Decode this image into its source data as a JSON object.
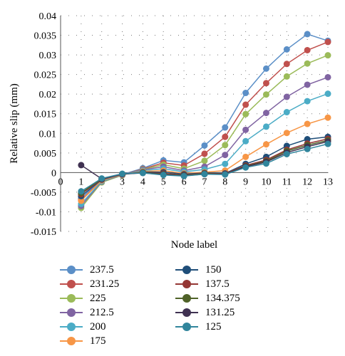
{
  "chart_data": {
    "type": "line",
    "title": "",
    "xlabel": "Node label",
    "ylabel": "Relative slip (mm)",
    "xlim": [
      0,
      13
    ],
    "ylim": [
      -0.015,
      0.04
    ],
    "x_ticks": [
      "0",
      "1",
      "2",
      "3",
      "4",
      "5",
      "6",
      "7",
      "8",
      "9",
      "10",
      "11",
      "12",
      "13"
    ],
    "y_ticks": [
      "0.04",
      "0.035",
      "0.03",
      "0.025",
      "0.02",
      "0.015",
      "0.01",
      "0.005",
      "0",
      "-0.005",
      "-0.01",
      "-0.015"
    ],
    "y_tick_values": [
      0.04,
      0.035,
      0.03,
      0.025,
      0.02,
      0.015,
      0.01,
      0.005,
      0,
      -0.005,
      -0.01,
      -0.015
    ],
    "grid": "dotted",
    "legend_position": "bottom",
    "x": [
      1,
      2,
      3,
      4,
      5,
      6,
      7,
      8,
      9,
      10,
      11,
      12,
      13
    ],
    "series": [
      {
        "name": "237.5",
        "color": "#5b8fc7",
        "values": [
          -0.0065,
          -0.0018,
          -0.0005,
          0.0011,
          0.0031,
          0.0026,
          0.0069,
          0.0115,
          0.0203,
          0.0265,
          0.0314,
          0.0353,
          0.0336
        ]
      },
      {
        "name": "231.25",
        "color": "#c0504d",
        "values": [
          -0.007,
          -0.002,
          -0.0006,
          0.0009,
          0.0025,
          0.0018,
          0.0048,
          0.0091,
          0.0173,
          0.0228,
          0.0277,
          0.0312,
          0.0333
        ]
      },
      {
        "name": "225",
        "color": "#9bbb59",
        "values": [
          -0.009,
          -0.0025,
          -0.0007,
          0.0008,
          0.002,
          0.001,
          0.003,
          0.007,
          0.0149,
          0.0199,
          0.0245,
          0.0278,
          0.0299
        ]
      },
      {
        "name": "212.5",
        "color": "#8064a2",
        "values": [
          -0.0085,
          -0.0023,
          -0.0006,
          0.0007,
          0.0015,
          0.0005,
          0.0015,
          0.0045,
          0.0109,
          0.0152,
          0.0193,
          0.0224,
          0.0243
        ]
      },
      {
        "name": "200",
        "color": "#4bacc6",
        "values": [
          -0.008,
          -0.0022,
          -0.0005,
          0.0005,
          0.001,
          0.0002,
          0.0008,
          0.0022,
          0.008,
          0.0117,
          0.0154,
          0.0182,
          0.0201
        ]
      },
      {
        "name": "175",
        "color": "#f79646",
        "values": [
          -0.0072,
          -0.002,
          -0.0005,
          0.0003,
          0.0005,
          -0.0002,
          0.0001,
          0.0005,
          0.004,
          0.0072,
          0.0101,
          0.0124,
          0.014
        ]
      },
      {
        "name": "150",
        "color": "#1f4e79",
        "values": [
          -0.006,
          -0.0018,
          -0.0004,
          0.0001,
          0.0001,
          -0.0004,
          -0.0001,
          -0.0002,
          0.0022,
          0.004,
          0.0068,
          0.0085,
          0.0091
        ]
      },
      {
        "name": "137.5",
        "color": "#943634",
        "values": [
          -0.0055,
          -0.0017,
          -0.0004,
          0.0,
          -0.0002,
          -0.0006,
          -0.0002,
          -0.0003,
          0.0018,
          0.0032,
          0.0058,
          0.0074,
          0.0086
        ]
      },
      {
        "name": "134.375",
        "color": "#4f6228",
        "values": [
          -0.0052,
          -0.0016,
          -0.0004,
          0.0,
          -0.0004,
          -0.0007,
          -0.0003,
          -0.0004,
          0.0016,
          0.0029,
          0.0055,
          0.007,
          0.0082
        ]
      },
      {
        "name": "131.25",
        "color": "#3f3151",
        "values": [
          0.0019,
          -0.0016,
          -0.0004,
          -0.0001,
          -0.0005,
          -0.0008,
          -0.0004,
          -0.0004,
          0.0015,
          0.0027,
          0.0051,
          0.0066,
          0.0079
        ]
      },
      {
        "name": "125",
        "color": "#31859c",
        "values": [
          -0.0048,
          -0.0015,
          -0.0003,
          -0.0001,
          -0.0006,
          -0.0009,
          -0.0004,
          -0.0005,
          0.0013,
          0.0023,
          0.0047,
          0.006,
          0.0073
        ]
      }
    ]
  }
}
